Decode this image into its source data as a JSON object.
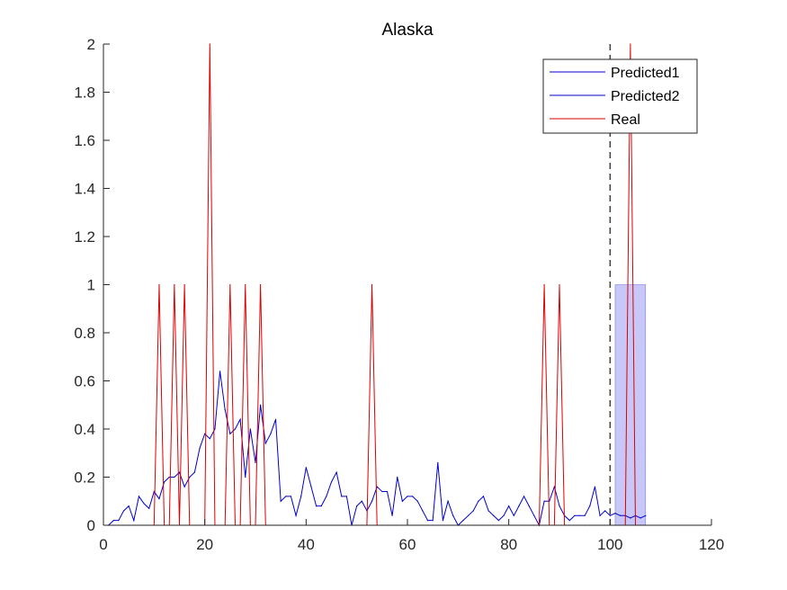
{
  "chart_data": {
    "type": "line",
    "title": "Alaska",
    "xlabel": "",
    "ylabel": "",
    "xlim": [
      0,
      120
    ],
    "ylim": [
      0,
      2
    ],
    "xticks": [
      0,
      20,
      40,
      60,
      80,
      100,
      120
    ],
    "yticks": [
      0,
      0.2,
      0.4,
      0.6,
      0.8,
      1,
      1.2,
      1.4,
      1.6,
      1.8,
      2
    ],
    "grid": false,
    "legend_position": "top-right",
    "vline": {
      "x": 100,
      "style": "dashed",
      "color": "#404040"
    },
    "band": {
      "x_start": 101,
      "x_end": 107,
      "y_low": 0,
      "y_high": 1,
      "color": "#c8c8f8"
    },
    "series": [
      {
        "name": "Predicted1",
        "color": "#0000cc",
        "x": [
          1,
          2,
          3,
          4,
          5,
          6,
          7,
          8,
          9,
          10,
          11,
          12,
          13,
          14,
          15,
          16,
          17,
          18,
          19,
          20,
          21,
          22,
          23,
          24,
          25,
          26,
          27,
          28,
          29,
          30,
          31,
          32,
          33,
          34,
          35,
          36,
          37,
          38,
          39,
          40,
          41,
          42,
          43,
          44,
          45,
          46,
          47,
          48,
          49,
          50,
          51,
          52,
          53,
          54,
          55,
          56,
          57,
          58,
          59,
          60,
          61,
          62,
          63,
          64,
          65,
          66,
          67,
          68,
          69,
          70,
          71,
          72,
          73,
          74,
          75,
          76,
          77,
          78,
          79,
          80,
          81,
          82,
          83,
          84,
          85,
          86,
          87,
          88,
          89,
          90,
          91,
          92,
          93,
          94,
          95,
          96,
          97,
          98,
          99,
          100
        ],
        "values": [
          0,
          0.02,
          0.02,
          0.06,
          0.08,
          0.02,
          0.12,
          0.09,
          0.07,
          0.14,
          0.11,
          0.18,
          0.2,
          0.2,
          0.22,
          0.16,
          0.2,
          0.22,
          0.32,
          0.38,
          0.36,
          0.4,
          0.64,
          0.48,
          0.38,
          0.4,
          0.44,
          0.2,
          0.4,
          0.26,
          0.5,
          0.34,
          0.38,
          0.44,
          0.1,
          0.12,
          0.12,
          0.04,
          0.12,
          0.24,
          0.16,
          0.08,
          0.08,
          0.12,
          0.18,
          0.22,
          0.12,
          0.12,
          0,
          0.08,
          0.1,
          0.06,
          0.1,
          0.16,
          0.14,
          0.14,
          0.04,
          0.2,
          0.1,
          0.12,
          0.12,
          0.1,
          0.06,
          0.02,
          0.02,
          0.26,
          0.02,
          0.1,
          0.04,
          0,
          0.02,
          0.04,
          0.06,
          0.1,
          0.12,
          0.06,
          0.04,
          0.02,
          0.04,
          0.08,
          0.04,
          0.08,
          0.12,
          0.08,
          0.04,
          0,
          0.1,
          0.1,
          0.16,
          0.08,
          0.04,
          0.02,
          0.04,
          0.04,
          0.04,
          0.08,
          0.16,
          0.04,
          0.06,
          0.04
        ]
      },
      {
        "name": "Predicted2",
        "color": "#0000cc",
        "x": [
          100,
          101,
          102,
          103,
          104,
          105,
          106,
          107
        ],
        "values": [
          0.04,
          0.05,
          0.04,
          0.04,
          0.03,
          0.04,
          0.03,
          0.04
        ]
      },
      {
        "name": "Real",
        "color": "#dd0000",
        "x": [
          1,
          2,
          3,
          4,
          5,
          6,
          7,
          8,
          9,
          10,
          11,
          12,
          13,
          14,
          15,
          16,
          17,
          18,
          19,
          20,
          21,
          22,
          23,
          24,
          25,
          26,
          27,
          28,
          29,
          30,
          31,
          32,
          33,
          34,
          35,
          36,
          37,
          38,
          39,
          40,
          41,
          42,
          43,
          44,
          45,
          46,
          47,
          48,
          49,
          50,
          51,
          52,
          53,
          54,
          55,
          56,
          57,
          58,
          59,
          60,
          61,
          62,
          63,
          64,
          65,
          66,
          67,
          68,
          69,
          70,
          71,
          72,
          73,
          74,
          75,
          76,
          77,
          78,
          79,
          80,
          81,
          82,
          83,
          84,
          85,
          86,
          87,
          88,
          89,
          90,
          91,
          92,
          93,
          94,
          95,
          96,
          97,
          98,
          99,
          100,
          101,
          102,
          103,
          104,
          105,
          106,
          107
        ],
        "values": [
          0,
          0,
          0,
          0,
          0,
          0,
          0,
          0,
          0,
          0,
          1,
          0,
          0,
          1,
          0,
          1,
          0,
          0,
          0,
          0,
          2,
          0,
          0,
          0,
          1,
          0,
          0,
          1,
          0,
          0,
          1,
          0,
          0,
          0,
          0,
          0,
          0,
          0,
          0,
          0,
          0,
          0,
          0,
          0,
          0,
          0,
          0,
          0,
          0,
          0,
          0,
          0,
          1,
          0,
          0,
          0,
          0,
          0,
          0,
          0,
          0,
          0,
          0,
          0,
          0,
          0,
          0,
          0,
          0,
          0,
          0,
          0,
          0,
          0,
          0,
          0,
          0,
          0,
          0,
          0,
          0,
          0,
          0,
          0,
          0,
          0,
          1,
          0,
          0,
          1,
          0,
          0,
          0,
          0,
          0,
          0,
          0,
          0,
          0,
          0,
          0,
          0,
          0,
          2,
          0,
          0,
          0
        ]
      }
    ]
  }
}
